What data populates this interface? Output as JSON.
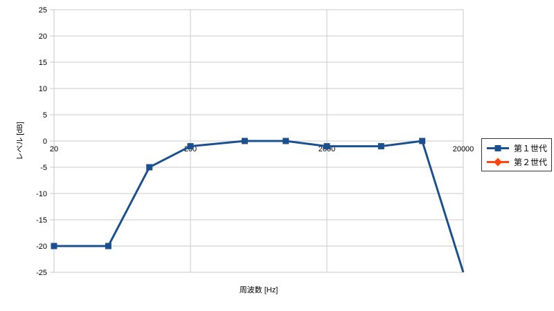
{
  "chart_data": {
    "type": "line",
    "title": "",
    "xlabel": "周波数 [Hz]",
    "ylabel": "レベル [dB]",
    "x_scale": "log",
    "xlim": [
      20,
      20000
    ],
    "ylim": [
      -25,
      25
    ],
    "x_ticks": [
      20,
      200,
      2000,
      20000
    ],
    "x_tick_labels": [
      "20",
      "200",
      "2000",
      "20000"
    ],
    "y_ticks": [
      25,
      20,
      15,
      10,
      5,
      0,
      -5,
      -10,
      -15,
      -20,
      -25
    ],
    "grid": true,
    "legend_position": "right",
    "series": [
      {
        "name": "第１世代",
        "color": "#1B508F",
        "marker": "square",
        "x": [
          20,
          50,
          100,
          200,
          500,
          1000,
          2000,
          5000,
          10000,
          20000
        ],
        "y": [
          -20,
          -20,
          -5,
          -1,
          0,
          0,
          -1,
          -1,
          0,
          -25
        ]
      },
      {
        "name": "第２世代",
        "color": "#FF420E",
        "marker": "diamond",
        "x": [],
        "y": []
      }
    ]
  },
  "colors": {
    "background": "#FFFFFF",
    "gridline": "#C9C9C9",
    "axis": "#C9C9C9",
    "text": "#000000",
    "legend_border": "#333333"
  }
}
